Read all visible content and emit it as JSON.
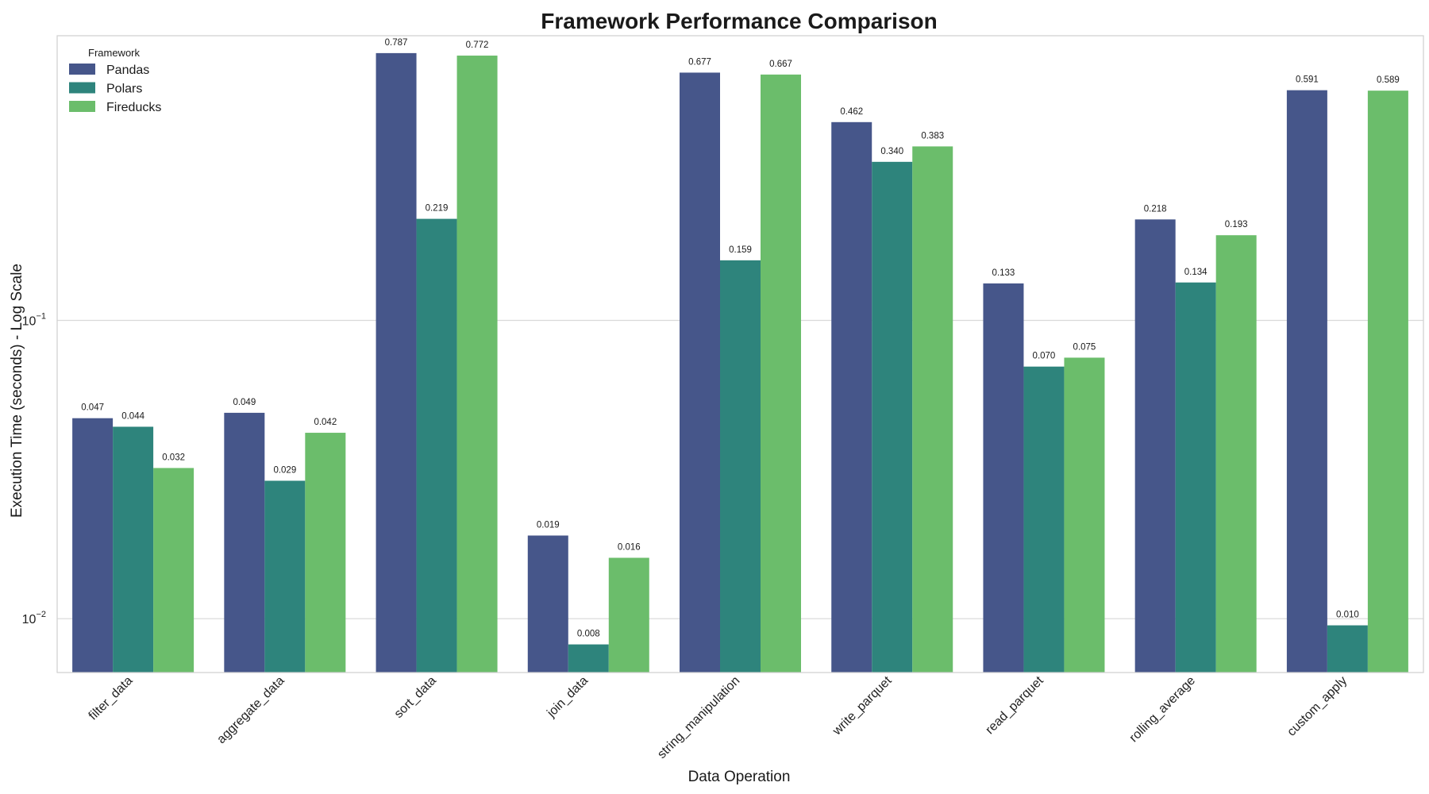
{
  "chart_data": {
    "type": "bar",
    "title": "Framework Performance Comparison",
    "xlabel": "Data Operation",
    "ylabel": "Execution Time (seconds) - Log Scale",
    "yscale": "log",
    "ylim": [
      0.0066,
      0.9
    ],
    "yticks": [
      {
        "value": 0.1,
        "base": "10",
        "exp": "−1"
      },
      {
        "value": 0.01,
        "base": "10",
        "exp": "−2"
      }
    ],
    "grid": true,
    "legend": {
      "title": "Framework",
      "placement": "top-left"
    },
    "categories": [
      "filter_data",
      "aggregate_data",
      "sort_data",
      "join_data",
      "string_manipulation",
      "write_parquet",
      "read_parquet",
      "rolling_average",
      "custom_apply"
    ],
    "series": [
      {
        "name": "Pandas",
        "color": "#46568a",
        "values": [
          0.047,
          0.049,
          0.787,
          0.019,
          0.677,
          0.462,
          0.133,
          0.218,
          0.591
        ],
        "labels": [
          "0.047",
          "0.049",
          "0.787",
          "0.019",
          "0.677",
          "0.462",
          "0.133",
          "0.218",
          "0.591"
        ]
      },
      {
        "name": "Polars",
        "color": "#2e847c",
        "values": [
          0.044,
          0.029,
          0.219,
          0.0082,
          0.159,
          0.34,
          0.07,
          0.134,
          0.0095
        ],
        "labels": [
          "0.044",
          "0.029",
          "0.219",
          "0.008",
          "0.159",
          "0.340",
          "0.070",
          "0.134",
          "0.010"
        ]
      },
      {
        "name": "Fireducks",
        "color": "#6bbd6b",
        "values": [
          0.032,
          0.042,
          0.772,
          0.016,
          0.667,
          0.383,
          0.075,
          0.193,
          0.589
        ],
        "labels": [
          "0.032",
          "0.042",
          "0.772",
          "0.016",
          "0.667",
          "0.383",
          "0.075",
          "0.193",
          "0.589"
        ]
      }
    ]
  }
}
